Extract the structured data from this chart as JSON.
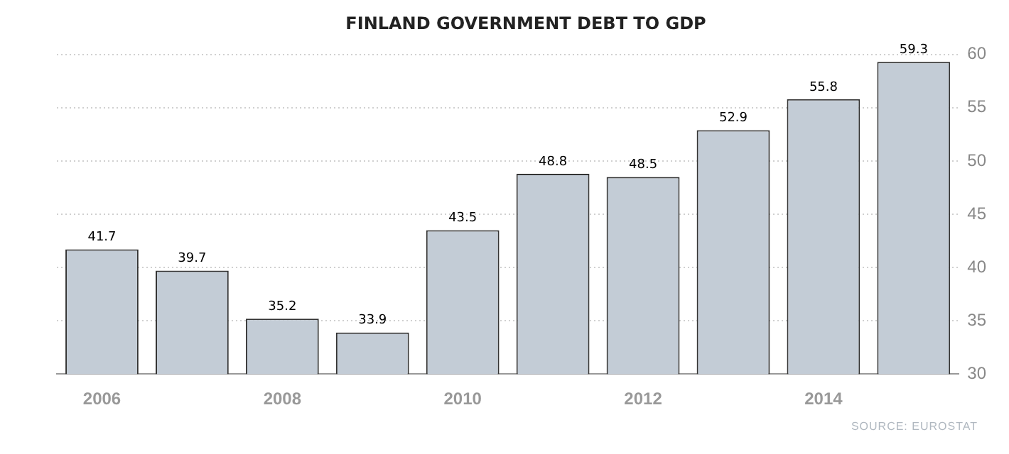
{
  "chart_data": {
    "type": "bar",
    "title": "FINLAND GOVERNMENT DEBT TO GDP",
    "categories": [
      "2006",
      null,
      "2008",
      null,
      "2010",
      null,
      "2012",
      null,
      "2014",
      null
    ],
    "values": [
      41.7,
      39.7,
      35.2,
      33.9,
      43.5,
      48.8,
      48.5,
      52.9,
      55.8,
      59.3
    ],
    "color": "#c3ccd6",
    "ylim": [
      30,
      60
    ],
    "yticks": [
      30,
      35,
      40,
      45,
      50,
      55,
      60
    ],
    "grid": "y",
    "data_labels": true,
    "annotations": [
      "SOURCE: EUROSTAT"
    ]
  }
}
